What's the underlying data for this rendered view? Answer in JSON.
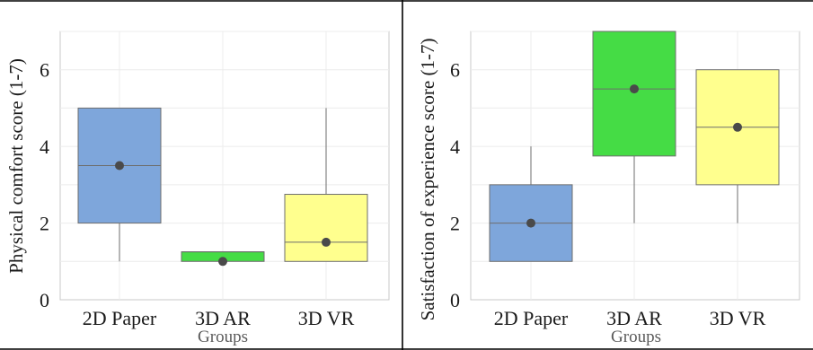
{
  "chart_data": [
    {
      "type": "box",
      "categories": [
        "2D Paper",
        "3D AR",
        "3D VR"
      ],
      "colors": [
        "#7ea6db",
        "#45dc45",
        "#ffff8e"
      ],
      "ylabel": "Physical comfort score (1-7)",
      "xlabel": "Groups",
      "ylim": [
        0,
        7
      ],
      "yticks": [
        0,
        2,
        4,
        6
      ],
      "grid": true,
      "boxes": [
        {
          "category": "2D Paper",
          "min": 1,
          "q1": 2,
          "median": 3.5,
          "q3": 5,
          "max": 5,
          "mean": 3.5
        },
        {
          "category": "3D AR",
          "min": 1,
          "q1": 1,
          "median": 1.25,
          "q3": 1.25,
          "max": 1.25,
          "mean": 1
        },
        {
          "category": "3D VR",
          "min": 1,
          "q1": 1,
          "median": 1.5,
          "q3": 2.75,
          "max": 5,
          "mean": 1.5
        }
      ]
    },
    {
      "type": "box",
      "categories": [
        "2D Paper",
        "3D AR",
        "3D VR"
      ],
      "colors": [
        "#7ea6db",
        "#45dc45",
        "#ffff8e"
      ],
      "ylabel": "Satisfaction of experience score (1-7)",
      "xlabel": "Groups",
      "ylim": [
        0,
        7
      ],
      "yticks": [
        0,
        2,
        4,
        6
      ],
      "grid": true,
      "boxes": [
        {
          "category": "2D Paper",
          "min": 1,
          "q1": 1,
          "median": 2,
          "q3": 3,
          "max": 4,
          "mean": 2
        },
        {
          "category": "3D AR",
          "min": 2,
          "q1": 3.75,
          "median": 5.5,
          "q3": 7,
          "max": 7,
          "mean": 5.5
        },
        {
          "category": "3D VR",
          "min": 2,
          "q1": 3,
          "median": 4.5,
          "q3": 6,
          "max": 6,
          "mean": 4.5
        }
      ]
    }
  ]
}
